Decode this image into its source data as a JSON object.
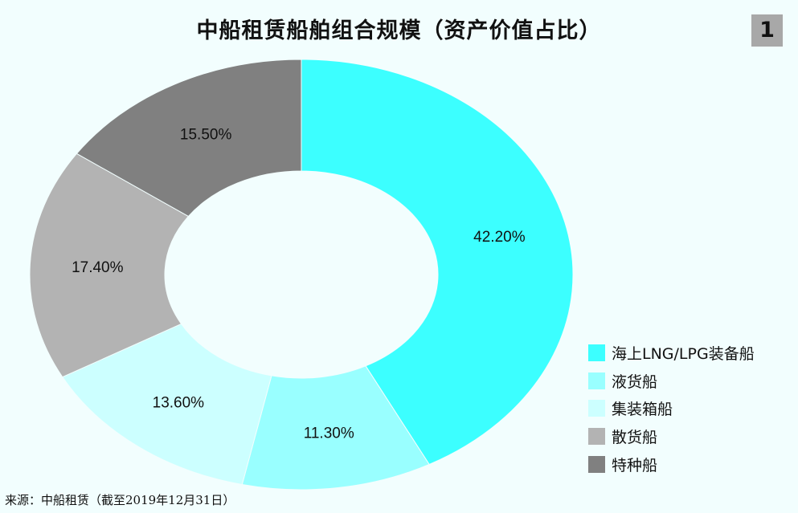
{
  "title": "中船租赁船舶组合规模（资产价值占比）",
  "figure_number": "1",
  "source": "来源：中船租赁（截至2019年12月31日）",
  "chart_data": {
    "type": "pie",
    "donut": true,
    "categories": [
      "海上LNG/LPG装备船",
      "液货船",
      "集装箱船",
      "散货船",
      "特种船"
    ],
    "values": [
      42.2,
      11.3,
      13.6,
      17.4,
      15.5
    ],
    "value_labels": [
      "42.20%",
      "11.30%",
      "13.60%",
      "17.40%",
      "15.50%"
    ],
    "colors": [
      "#3cffff",
      "#99ffff",
      "#ccffff",
      "#b3b3b3",
      "#808080"
    ],
    "legend": "right-bottom",
    "start": "top, clockwise"
  }
}
